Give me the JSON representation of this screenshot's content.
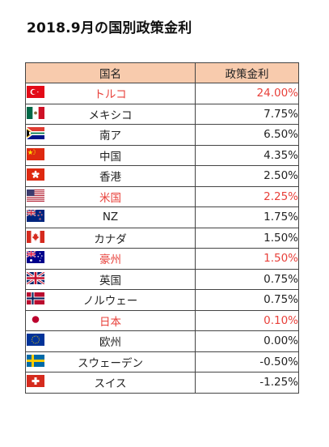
{
  "title": "2018.9月の国別政策金利",
  "columns": {
    "country": "国名",
    "rate": "政策金利"
  },
  "rows": [
    {
      "flag": "turkey-flag-icon",
      "name": "トルコ",
      "rate": "24.00%",
      "highlight": true
    },
    {
      "flag": "mexico-flag-icon",
      "name": "メキシコ",
      "rate": "7.75%",
      "highlight": false
    },
    {
      "flag": "south-africa-flag-icon",
      "name": "南ア",
      "rate": "6.50%",
      "highlight": false
    },
    {
      "flag": "china-flag-icon",
      "name": "中国",
      "rate": "4.35%",
      "highlight": false
    },
    {
      "flag": "hong-kong-flag-icon",
      "name": "香港",
      "rate": "2.50%",
      "highlight": false
    },
    {
      "flag": "usa-flag-icon",
      "name": "米国",
      "rate": "2.25%",
      "highlight": true
    },
    {
      "flag": "new-zealand-flag-icon",
      "name": "NZ",
      "rate": "1.75%",
      "highlight": false
    },
    {
      "flag": "canada-flag-icon",
      "name": "カナダ",
      "rate": "1.50%",
      "highlight": false
    },
    {
      "flag": "australia-flag-icon",
      "name": "豪州",
      "rate": "1.50%",
      "highlight": true
    },
    {
      "flag": "uk-flag-icon",
      "name": "英国",
      "rate": "0.75%",
      "highlight": false
    },
    {
      "flag": "norway-flag-icon",
      "name": "ノルウェー",
      "rate": "0.75%",
      "highlight": false
    },
    {
      "flag": "japan-flag-icon",
      "name": "日本",
      "rate": "0.10%",
      "highlight": true
    },
    {
      "flag": "eu-flag-icon",
      "name": "欧州",
      "rate": "0.00%",
      "highlight": false
    },
    {
      "flag": "sweden-flag-icon",
      "name": "スウェーデン",
      "rate": "-0.50%",
      "highlight": false
    },
    {
      "flag": "switzerland-flag-icon",
      "name": "スイス",
      "rate": "-1.25%",
      "highlight": false
    }
  ],
  "colors": {
    "header_bg": "#f8cbad",
    "highlight_text": "#e8403a"
  }
}
